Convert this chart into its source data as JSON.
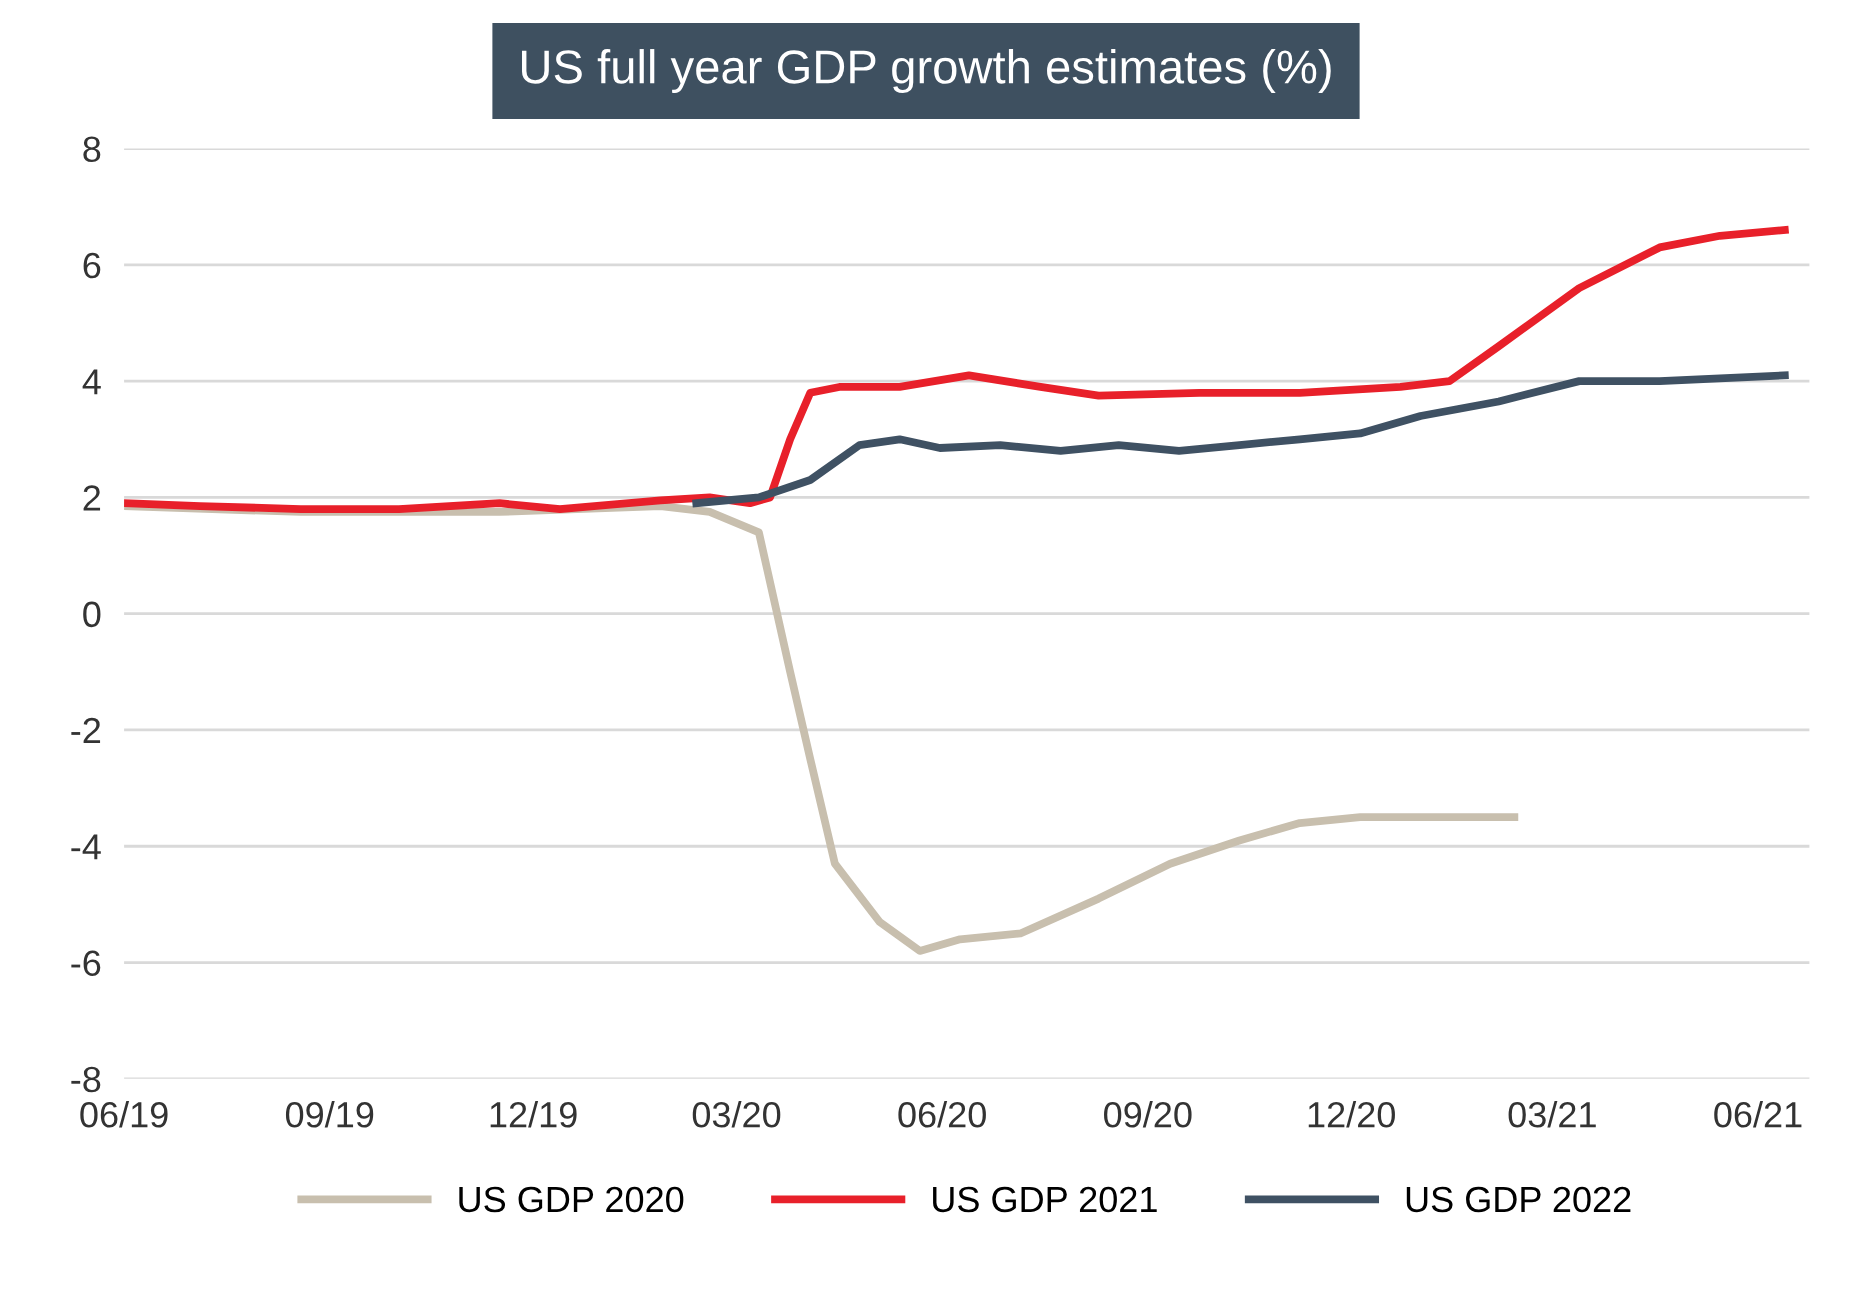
{
  "chart_data": {
    "type": "line",
    "title": "US full year GDP growth estimates (%)",
    "xlim": [
      "2019-06-01",
      "2021-06-24"
    ],
    "ylim": [
      -8,
      8
    ],
    "yticks": [
      -8,
      -6,
      -4,
      -2,
      0,
      2,
      4,
      6,
      8
    ],
    "xticks": [
      {
        "value": "2019-06-01",
        "label": "06/19"
      },
      {
        "value": "2019-09-01",
        "label": "09/19"
      },
      {
        "value": "2019-12-01",
        "label": "12/19"
      },
      {
        "value": "2020-03-01",
        "label": "03/20"
      },
      {
        "value": "2020-06-01",
        "label": "06/20"
      },
      {
        "value": "2020-09-01",
        "label": "09/20"
      },
      {
        "value": "2020-12-01",
        "label": "12/20"
      },
      {
        "value": "2021-03-01",
        "label": "03/21"
      },
      {
        "value": "2021-06-01",
        "label": "06/21"
      }
    ],
    "grid": "y",
    "legend": "bottom",
    "marker": "none",
    "line_style": "solid",
    "series": [
      {
        "name": "US GDP 2020",
        "color": "#c8bfae",
        "x": [
          "2019-06-01",
          "2019-08-19",
          "2019-11-16",
          "2020-01-27",
          "2020-02-18",
          "2020-03-11",
          "2020-03-25",
          "2020-04-03",
          "2020-04-14",
          "2020-05-04",
          "2020-05-22",
          "2020-06-09",
          "2020-07-06",
          "2020-08-10",
          "2020-09-11",
          "2020-10-12",
          "2020-11-08",
          "2020-12-05",
          "2021-01-10",
          "2021-02-12"
        ],
        "values": [
          1.85,
          1.75,
          1.75,
          1.85,
          1.75,
          1.4,
          -1.0,
          -2.5,
          -4.3,
          -5.3,
          -5.8,
          -5.6,
          -5.5,
          -4.9,
          -4.3,
          -3.9,
          -3.6,
          -3.5,
          -3.5,
          -3.5
        ]
      },
      {
        "name": "US GDP 2021",
        "color": "#e8202a",
        "x": [
          "2019-06-01",
          "2019-07-05",
          "2019-08-19",
          "2019-10-02",
          "2019-11-16",
          "2019-12-13",
          "2020-01-27",
          "2020-02-18",
          "2020-03-07",
          "2020-03-16",
          "2020-03-25",
          "2020-04-03",
          "2020-04-16",
          "2020-05-13",
          "2020-06-13",
          "2020-07-15",
          "2020-08-10",
          "2020-09-24",
          "2020-11-08",
          "2020-12-23",
          "2021-01-14",
          "2021-02-05",
          "2021-03-13",
          "2021-04-18",
          "2021-05-15",
          "2021-06-13"
        ],
        "values": [
          1.9,
          1.85,
          1.8,
          1.8,
          1.9,
          1.8,
          1.95,
          2.0,
          1.9,
          2.0,
          3.0,
          3.8,
          3.9,
          3.9,
          4.1,
          3.9,
          3.75,
          3.8,
          3.8,
          3.9,
          4.0,
          4.6,
          5.6,
          6.3,
          6.5,
          6.6
        ]
      },
      {
        "name": "US GDP 2022",
        "color": "#3f5163",
        "x": [
          "2020-02-12",
          "2020-03-11",
          "2020-04-03",
          "2020-04-25",
          "2020-05-13",
          "2020-05-31",
          "2020-06-27",
          "2020-07-24",
          "2020-08-19",
          "2020-09-15",
          "2020-10-12",
          "2020-11-08",
          "2020-12-05",
          "2021-01-01",
          "2021-02-05",
          "2021-03-13",
          "2021-04-18",
          "2021-06-13"
        ],
        "values": [
          1.9,
          2.0,
          2.3,
          2.9,
          3.0,
          2.85,
          2.9,
          2.8,
          2.9,
          2.8,
          2.9,
          3.0,
          3.1,
          3.4,
          3.65,
          4.0,
          4.0,
          4.1
        ]
      }
    ]
  }
}
